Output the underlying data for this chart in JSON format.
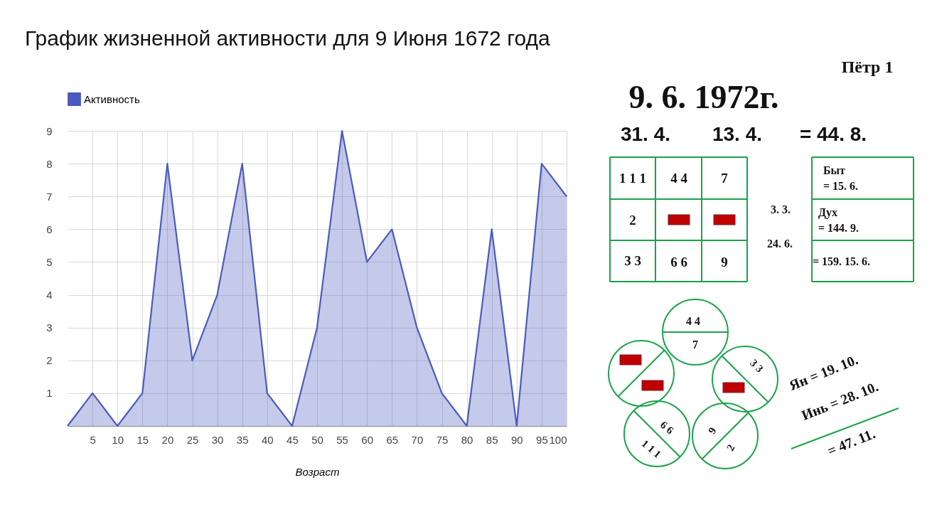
{
  "chart_data": [
    {
      "type": "area",
      "title": "График жизненной активности для 9 Июня 1672 года",
      "xlabel": "Возраст",
      "x": [
        0,
        5,
        10,
        15,
        20,
        25,
        30,
        35,
        40,
        45,
        50,
        55,
        60,
        65,
        70,
        75,
        80,
        85,
        90,
        95,
        100
      ],
      "series": [
        {
          "name": "Активность",
          "color": "#4a5bbf",
          "values": [
            0,
            1,
            0,
            1,
            8,
            2,
            4,
            8,
            1,
            0,
            3,
            9,
            5,
            6,
            3,
            1,
            0,
            6,
            0,
            8,
            7
          ]
        }
      ],
      "xlim": [
        0,
        100
      ],
      "xticks": [
        5,
        10,
        15,
        20,
        25,
        30,
        35,
        40,
        45,
        50,
        55,
        60,
        65,
        70,
        75,
        80,
        85,
        90,
        95,
        100
      ],
      "ylim": [
        0,
        9
      ],
      "yticks": [
        1,
        2,
        3,
        4,
        5,
        6,
        7,
        8,
        9
      ],
      "grid": true,
      "legend": "top left"
    },
    {
      "type": "other",
      "annotations": [
        "Пётр 1",
        "9. 6. 1972г.",
        "31. 4.",
        "13. 4.",
        "= 44. 8.",
        "1 1 1",
        "4 4",
        "7",
        "2",
        "3 3",
        "6 6",
        "9",
        "3. 3.",
        "24. 6.",
        "Быт",
        "= 15. 6.",
        "Дух",
        "= 144. 9.",
        "= 159. 15. 6.",
        "4 4",
        "7",
        "3 3",
        "6 6",
        "1 1 1",
        "9",
        "2",
        "Ян = 19. 10.",
        "Инь = 28. 10.",
        "= 47. 11."
      ]
    }
  ]
}
